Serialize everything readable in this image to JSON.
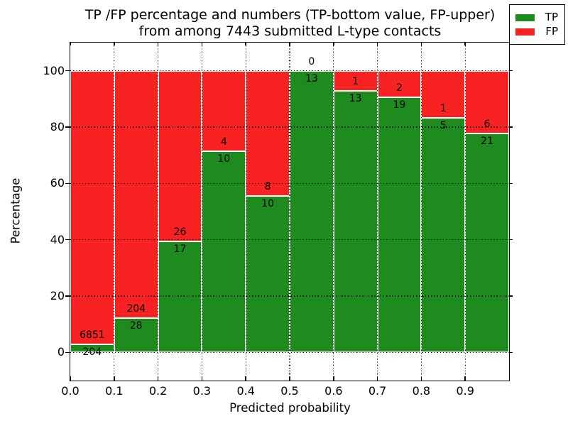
{
  "title": {
    "line1": "TP /FP percentage and numbers (TP-bottom value, FP-upper)",
    "line2": "from among 7443 submitted L-type contacts"
  },
  "chart_data": {
    "type": "bar",
    "stacked": true,
    "normalized": "each bin scaled to 100 percent",
    "total_contacts": 7443,
    "bins": [
      "0.0-0.1",
      "0.1-0.2",
      "0.2-0.3",
      "0.3-0.4",
      "0.4-0.5",
      "0.5-0.6",
      "0.6-0.7",
      "0.7-0.8",
      "0.8-0.9",
      "0.9-1.0"
    ],
    "series": [
      {
        "name": "TP",
        "color": "#1e8b1e",
        "values": [
          204,
          28,
          17,
          10,
          10,
          13,
          13,
          19,
          5,
          21
        ]
      },
      {
        "name": "FP",
        "color": "#f92222",
        "values": [
          6851,
          204,
          26,
          4,
          8,
          0,
          1,
          2,
          1,
          6
        ]
      }
    ],
    "tp_percent": [
      2.89,
      12.07,
      39.53,
      71.43,
      55.56,
      100.0,
      92.86,
      90.48,
      83.33,
      77.78
    ],
    "xlabel": "Predicted probability",
    "ylabel": "Percentage",
    "xlim": [
      0.0,
      1.0
    ],
    "ylim": [
      -10,
      110
    ],
    "xticks": [
      "0.0",
      "0.1",
      "0.2",
      "0.3",
      "0.4",
      "0.5",
      "0.6",
      "0.7",
      "0.8",
      "0.9"
    ],
    "yticks": [
      0,
      20,
      40,
      60,
      80,
      100
    ],
    "grid": {
      "style": "dotted",
      "color": "#000000",
      "on": true
    },
    "legend": {
      "position": "upper right",
      "entries": [
        {
          "label": "TP",
          "color": "#1e8b1e"
        },
        {
          "label": "FP",
          "color": "#f92222"
        }
      ]
    }
  }
}
